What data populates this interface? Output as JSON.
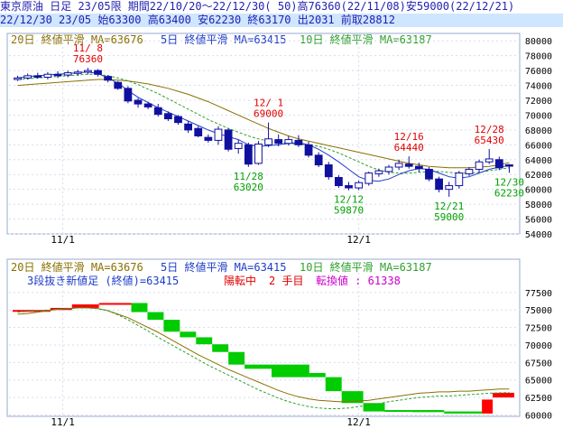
{
  "header": {
    "line1": "東京原油 日足 23/05限 期間22/10/20～22/12/30( 50)高76360(22/11/08)安59000(22/12/21)",
    "line2": "22/12/30 23/05 始63300 高63400 安62230 終63170 出2031 前取28812"
  },
  "upper_legend": {
    "ma20": "20日 終値平滑 MA=63676",
    "ma5": "5日 終値平滑 MA=63415",
    "ma10": "10日 終値平滑 MA=63187"
  },
  "lower_legend": {
    "ma20": "20日 終値平滑 MA=63676",
    "ma5": "5日 終値平滑 MA=63415",
    "ma10": "10日 終値平滑 MA=63187",
    "kagi_label": "3段抜き新値足 (終値)=63415",
    "kagi_state": "陽転中",
    "kagi_step": "2 手目",
    "kagi_switch": "転換値 : 61338"
  },
  "x_labels": [
    "11/1",
    "12/1"
  ],
  "colors": {
    "up": "#ff0000",
    "down": "#00cc00",
    "candle_down": "#1010a0",
    "ma20": "#8a7000",
    "ma5": "#1e3cc8",
    "ma10": "#2ea02e",
    "label_red": "#e00000",
    "label_green": "#00a000"
  },
  "chart_data": [
    {
      "type": "candlestick",
      "y_ticks": [
        "80000",
        "78000",
        "76000",
        "74000",
        "72000",
        "70000",
        "68000",
        "66000",
        "64000",
        "62000",
        "60000",
        "58000",
        "56000",
        "54000"
      ],
      "ylim": [
        54000,
        81000
      ],
      "annotations": [
        {
          "date": "11/ 8",
          "value": "76360",
          "kind": "high"
        },
        {
          "date": "12/ 1",
          "value": "69000",
          "kind": "high"
        },
        {
          "date": "11/28",
          "value": "63020",
          "kind": "low"
        },
        {
          "date": "12/16",
          "value": "64440",
          "kind": "high"
        },
        {
          "date": "12/12",
          "value": "59870",
          "kind": "low"
        },
        {
          "date": "12/21",
          "value": "59000",
          "kind": "low"
        },
        {
          "date": "12/28",
          "value": "65430",
          "kind": "high"
        },
        {
          "date": "12/30",
          "value": "62230",
          "kind": "low"
        }
      ],
      "candles": [
        [
          74800,
          75300,
          74600,
          75000
        ],
        [
          75000,
          75600,
          74800,
          75300
        ],
        [
          75300,
          75700,
          74900,
          75100
        ],
        [
          75100,
          75800,
          74800,
          75500
        ],
        [
          75500,
          75900,
          75000,
          75400
        ],
        [
          75400,
          76000,
          75100,
          75700
        ],
        [
          75700,
          76100,
          75300,
          75800
        ],
        [
          75800,
          76360,
          75500,
          76000
        ],
        [
          76000,
          76200,
          75200,
          75500
        ],
        [
          75200,
          75400,
          74400,
          74700
        ],
        [
          74400,
          74600,
          73400,
          73600
        ],
        [
          73600,
          73900,
          71600,
          71900
        ],
        [
          72000,
          72300,
          71000,
          71500
        ],
        [
          71500,
          71800,
          70800,
          71100
        ],
        [
          71000,
          71500,
          69800,
          70100
        ],
        [
          70200,
          70500,
          69200,
          69500
        ],
        [
          69800,
          70000,
          68700,
          69000
        ],
        [
          68800,
          69200,
          67600,
          68000
        ],
        [
          68200,
          68500,
          67000,
          67200
        ],
        [
          67000,
          67400,
          66300,
          66600
        ],
        [
          66600,
          68500,
          66000,
          68100
        ],
        [
          68000,
          68200,
          65100,
          65400
        ],
        [
          65500,
          66700,
          64800,
          66200
        ],
        [
          66000,
          66300,
          63020,
          63400
        ],
        [
          63500,
          66500,
          63300,
          66100
        ],
        [
          66000,
          69000,
          65700,
          66800
        ],
        [
          66700,
          67400,
          65800,
          66200
        ],
        [
          66200,
          67200,
          65900,
          66700
        ],
        [
          66600,
          67300,
          65700,
          66000
        ],
        [
          66000,
          66400,
          64300,
          64600
        ],
        [
          64600,
          65000,
          63000,
          63300
        ],
        [
          63300,
          63700,
          61300,
          61700
        ],
        [
          61600,
          61900,
          60200,
          60500
        ],
        [
          60500,
          61000,
          59870,
          60200
        ],
        [
          60200,
          61200,
          59900,
          60900
        ],
        [
          60800,
          62400,
          60500,
          62200
        ],
        [
          62100,
          62800,
          61700,
          62500
        ],
        [
          62400,
          63300,
          62000,
          63000
        ],
        [
          63000,
          64000,
          62600,
          63500
        ],
        [
          63400,
          64440,
          62800,
          63100
        ],
        [
          63100,
          63600,
          62300,
          62800
        ],
        [
          62700,
          63000,
          61100,
          61400
        ],
        [
          61400,
          61700,
          59600,
          60000
        ],
        [
          60000,
          61000,
          59000,
          60500
        ],
        [
          60500,
          62500,
          60100,
          62200
        ],
        [
          62100,
          63000,
          61800,
          62700
        ],
        [
          62700,
          64000,
          62300,
          63700
        ],
        [
          63700,
          65430,
          63400,
          64100
        ],
        [
          64000,
          64400,
          62600,
          62900
        ],
        [
          63300,
          63400,
          62230,
          63170
        ]
      ],
      "ma5": [
        75000,
        75200,
        75300,
        75400,
        75500,
        75600,
        75700,
        75800,
        75600,
        75000,
        74300,
        73300,
        72400,
        71700,
        71000,
        70400,
        69800,
        69200,
        68600,
        68000,
        67500,
        67100,
        66700,
        66000,
        65800,
        65900,
        66000,
        66200,
        66300,
        66000,
        65400,
        64600,
        63700,
        62700,
        61700,
        61200,
        61100,
        61400,
        62000,
        62500,
        62800,
        62700,
        62200,
        61700,
        61500,
        61700,
        62200,
        62700,
        63000,
        63200
      ],
      "ma10": [
        74800,
        74900,
        75000,
        75100,
        75200,
        75300,
        75400,
        75500,
        75500,
        75300,
        75000,
        74600,
        74100,
        73500,
        72900,
        72200,
        71500,
        70800,
        70100,
        69400,
        68800,
        68200,
        67700,
        67200,
        66800,
        66500,
        66300,
        66200,
        66100,
        66000,
        65800,
        65400,
        64900,
        64300,
        63700,
        63100,
        62600,
        62300,
        62200,
        62200,
        62300,
        62400,
        62400,
        62300,
        62200,
        62200,
        62300,
        62500,
        62700,
        62900
      ],
      "ma20": [
        74000,
        74100,
        74200,
        74300,
        74400,
        74500,
        74600,
        74700,
        74800,
        74800,
        74700,
        74600,
        74400,
        74200,
        73900,
        73600,
        73200,
        72800,
        72300,
        71800,
        71200,
        70600,
        70000,
        69400,
        68800,
        68200,
        67700,
        67200,
        66800,
        66500,
        66200,
        65900,
        65600,
        65300,
        65000,
        64700,
        64400,
        64100,
        63800,
        63500,
        63300,
        63100,
        63000,
        62900,
        62900,
        62900,
        63000,
        63100,
        63300,
        63600
      ]
    },
    {
      "type": "kagi_bar",
      "y_ticks": [
        "77500",
        "75000",
        "72500",
        "70000",
        "67500",
        "65000",
        "62500",
        "60000"
      ],
      "ylim": [
        59800,
        78000
      ],
      "blocks": [
        {
          "i0": 0,
          "i1": 6,
          "lo": 74800,
          "hi": 75000,
          "dir": "up"
        },
        {
          "i0": 7,
          "i1": 10,
          "lo": 75000,
          "hi": 75300,
          "dir": "up"
        },
        {
          "i0": 11,
          "i1": 15,
          "lo": 75300,
          "hi": 75800,
          "dir": "up"
        },
        {
          "i0": 16,
          "i1": 21,
          "lo": 75800,
          "hi": 76000,
          "dir": "up"
        },
        {
          "i0": 22,
          "i1": 24,
          "lo": 74700,
          "hi": 76000,
          "dir": "down"
        },
        {
          "i0": 25,
          "i1": 27,
          "lo": 73600,
          "hi": 74700,
          "dir": "down"
        },
        {
          "i0": 28,
          "i1": 30,
          "lo": 71900,
          "hi": 73600,
          "dir": "down"
        },
        {
          "i0": 31,
          "i1": 33,
          "lo": 71100,
          "hi": 71900,
          "dir": "down"
        },
        {
          "i0": 34,
          "i1": 36,
          "lo": 70100,
          "hi": 71100,
          "dir": "down"
        },
        {
          "i0": 37,
          "i1": 39,
          "lo": 69000,
          "hi": 70100,
          "dir": "down"
        },
        {
          "i0": 40,
          "i1": 42,
          "lo": 67200,
          "hi": 69000,
          "dir": "down"
        },
        {
          "i0": 43,
          "i1": 47,
          "lo": 66600,
          "hi": 67200,
          "dir": "down"
        },
        {
          "i0": 48,
          "i1": 54,
          "lo": 65400,
          "hi": 67200,
          "dir": "down"
        },
        {
          "i0": 55,
          "i1": 57,
          "lo": 65400,
          "hi": 66000,
          "dir": "down"
        },
        {
          "i0": 58,
          "i1": 60,
          "lo": 63400,
          "hi": 65400,
          "dir": "down"
        },
        {
          "i0": 61,
          "i1": 64,
          "lo": 61700,
          "hi": 63400,
          "dir": "down"
        },
        {
          "i0": 65,
          "i1": 68,
          "lo": 60500,
          "hi": 61700,
          "dir": "down"
        },
        {
          "i0": 69,
          "i1": 73,
          "lo": 60500,
          "hi": 60700,
          "dir": "down"
        },
        {
          "i0": 74,
          "i1": 79,
          "lo": 60400,
          "hi": 60700,
          "dir": "down"
        },
        {
          "i0": 80,
          "i1": 86,
          "lo": 60200,
          "hi": 60500,
          "dir": "down"
        },
        {
          "i0": 87,
          "i1": 88,
          "lo": 60200,
          "hi": 62200,
          "dir": "up"
        },
        {
          "i0": 89,
          "i1": 92,
          "lo": 62500,
          "hi": 63170,
          "dir": "up"
        }
      ],
      "ma20_line": [
        74400,
        74500,
        74700,
        74900,
        75100,
        75200,
        75300,
        75300,
        75200,
        74900,
        74400,
        73900,
        73200,
        72500,
        71800,
        71000,
        70200,
        69400,
        68600,
        67900,
        67200,
        66500,
        65900,
        65300,
        64700,
        64100,
        63500,
        63000,
        62600,
        62300,
        62100,
        62000,
        61900,
        61900,
        62000,
        62100,
        62300,
        62500,
        62700,
        62900,
        63100,
        63200,
        63300,
        63300,
        63400,
        63400,
        63500,
        63600,
        63700,
        63700
      ],
      "ma10_line": [
        74700,
        74800,
        74900,
        75000,
        75100,
        75200,
        75300,
        75300,
        75200,
        74900,
        74300,
        73600,
        72800,
        72000,
        71100,
        70300,
        69500,
        68700,
        67900,
        67100,
        66400,
        65700,
        65000,
        64300,
        63600,
        63000,
        62400,
        61900,
        61500,
        61200,
        61000,
        60900,
        60900,
        61000,
        61200,
        61400,
        61600,
        61900,
        62100,
        62300,
        62500,
        62600,
        62700,
        62700,
        62800,
        62900,
        63000,
        63100,
        63150,
        63190
      ]
    }
  ]
}
